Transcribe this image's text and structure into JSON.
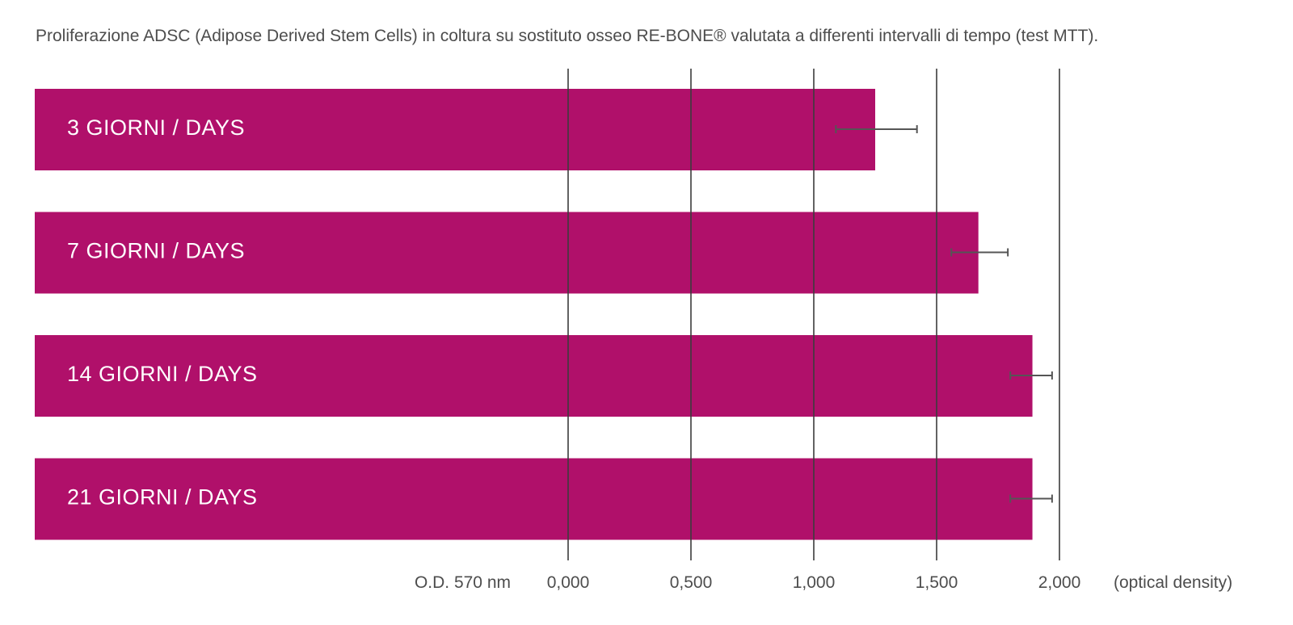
{
  "chart_data": {
    "type": "bar",
    "orientation": "horizontal",
    "title": "Proliferazione ADSC (Adipose Derived Stem Cells) in coltura su sostituto osseo RE-BONE® valutata a differenti intervalli di tempo (test MTT).",
    "categories": [
      "3 GIORNI / DAYS",
      "7 GIORNI / DAYS",
      "14 GIORNI / DAYS",
      "21 GIORNI / DAYS"
    ],
    "values": [
      1.25,
      1.67,
      1.89,
      1.89
    ],
    "error_low": [
      1.09,
      1.56,
      1.8,
      1.8
    ],
    "error_high": [
      1.42,
      1.79,
      1.97,
      1.97
    ],
    "xlim": [
      0,
      2
    ],
    "xticks": [
      0,
      0.5,
      1,
      1.5,
      2
    ],
    "xtick_labels": [
      "0,000",
      "0,500",
      "1,000",
      "1,500",
      "2,000"
    ],
    "axis_left_label": "O.D. 570 nm",
    "axis_right_label": "(optical density)",
    "grid": true,
    "bar_color": "#b0106a"
  }
}
